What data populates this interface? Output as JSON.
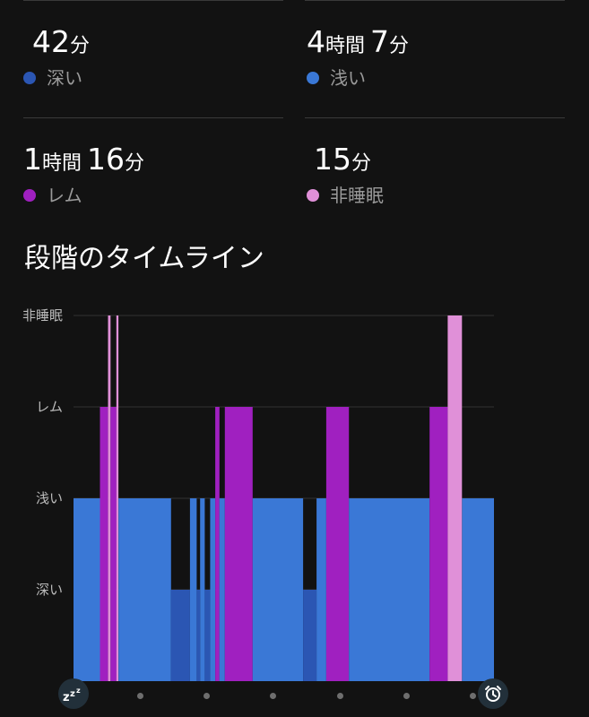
{
  "stats": {
    "deep": {
      "parts": [
        "42",
        "分"
      ],
      "label": "深い",
      "color": "#2b56b3"
    },
    "light": {
      "parts": [
        "4",
        "時間",
        "7",
        "分"
      ],
      "label": "浅い",
      "color": "#3a78d6"
    },
    "rem": {
      "parts": [
        "1",
        "時間",
        "16",
        "分"
      ],
      "label": "レム",
      "color": "#a020c0"
    },
    "awake": {
      "parts": [
        "15",
        "分"
      ],
      "label": "非睡眠",
      "color": "#e090d8"
    }
  },
  "timeline": {
    "title": "段階のタイムライン",
    "stage_labels": [
      "非睡眠",
      "レム",
      "浅い",
      "深い"
    ],
    "stage_colors": {
      "awake": "#e090d8",
      "rem": "#a020c0",
      "light": "#3a78d6",
      "deep": "#2b56b3"
    },
    "start_icon": "sleep-zzz-icon",
    "end_icon": "alarm-clock-icon"
  },
  "chart_data": {
    "type": "timeline",
    "stages": [
      "非睡眠",
      "レム",
      "浅い",
      "深い"
    ],
    "segments": [
      {
        "stage": "light",
        "start": 0.0,
        "end": 6.3
      },
      {
        "stage": "rem",
        "start": 6.3,
        "end": 8.2
      },
      {
        "stage": "awake",
        "start": 8.2,
        "end": 8.8
      },
      {
        "stage": "rem",
        "start": 8.8,
        "end": 10.2
      },
      {
        "stage": "awake",
        "start": 10.2,
        "end": 10.7
      },
      {
        "stage": "light",
        "start": 10.7,
        "end": 23.2
      },
      {
        "stage": "deep",
        "start": 23.2,
        "end": 27.7
      },
      {
        "stage": "light",
        "start": 27.7,
        "end": 29.3
      },
      {
        "stage": "deep",
        "start": 29.3,
        "end": 30.1
      },
      {
        "stage": "light",
        "start": 30.1,
        "end": 31.2
      },
      {
        "stage": "deep",
        "start": 31.2,
        "end": 32.5
      },
      {
        "stage": "light",
        "start": 32.5,
        "end": 33.7
      },
      {
        "stage": "rem",
        "start": 33.7,
        "end": 34.7
      },
      {
        "stage": "light",
        "start": 34.7,
        "end": 36.0
      },
      {
        "stage": "rem",
        "start": 36.0,
        "end": 42.6
      },
      {
        "stage": "light",
        "start": 42.6,
        "end": 54.6
      },
      {
        "stage": "deep",
        "start": 54.6,
        "end": 57.8
      },
      {
        "stage": "light",
        "start": 57.8,
        "end": 60.1
      },
      {
        "stage": "rem",
        "start": 60.1,
        "end": 65.5
      },
      {
        "stage": "light",
        "start": 65.5,
        "end": 84.7
      },
      {
        "stage": "rem",
        "start": 84.7,
        "end": 89.0
      },
      {
        "stage": "awake",
        "start": 89.0,
        "end": 92.4
      },
      {
        "stage": "light",
        "start": 92.4,
        "end": 100.0
      }
    ]
  }
}
